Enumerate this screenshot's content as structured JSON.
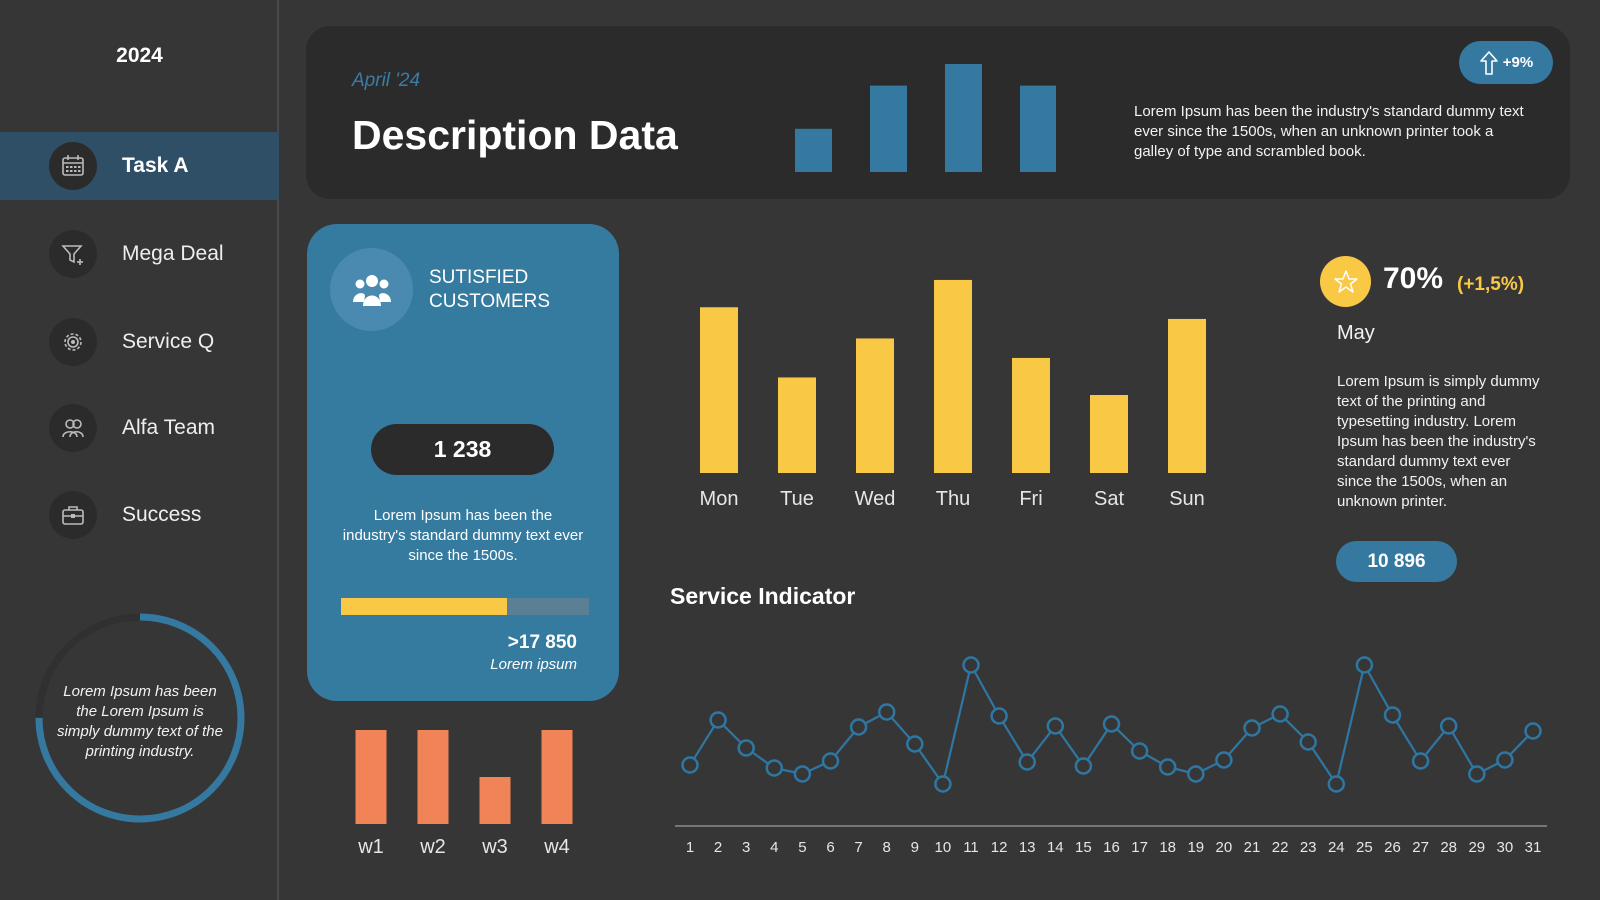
{
  "sidebar": {
    "year": "2024",
    "items": [
      {
        "label": "Task A",
        "icon": "calendar-icon",
        "active": true
      },
      {
        "label": "Mega Deal",
        "icon": "funnel-icon",
        "active": false
      },
      {
        "label": "Service Q",
        "icon": "gear-icon",
        "active": false
      },
      {
        "label": "Alfa Team",
        "icon": "team-icon",
        "active": false
      },
      {
        "label": "Success",
        "icon": "briefcase-icon",
        "active": false
      }
    ],
    "ring_text": "Lorem Ipsum has been the Lorem Ipsum is simply dummy text of the printing industry.",
    "ring_fraction": 0.75
  },
  "header": {
    "date": "April '24",
    "title": "Description Data",
    "description": "Lorem Ipsum has been the industry's standard dummy text ever since the 1500s, when an unknown printer took a galley of type and scrambled book.",
    "badge": "+9%",
    "badge_icon": "arrow-up-icon"
  },
  "customers": {
    "title": "SUTISFIED CUSTOMERS",
    "icon": "people-icon",
    "count": "1 238",
    "description": "Lorem Ipsum has been the industry's standard dummy text ever since the 1500s.",
    "progress": 0.67,
    "total": ">17 850",
    "total_label": "Lorem ipsum"
  },
  "stats": {
    "icon": "star-icon",
    "percent": "70%",
    "change": "(+1,5%)",
    "month": "May",
    "description": "Lorem Ipsum is simply dummy text of the printing and typesetting industry. Lorem Ipsum has been the industry's standard dummy text ever since the 1500s, when an unknown printer.",
    "pill": "10 896"
  },
  "service": {
    "title": "Service Indicator"
  },
  "colors": {
    "blue": "#3579a1",
    "yellow": "#f9c845",
    "orange": "#f08457",
    "line_blue": "#2f77a3"
  },
  "chart_data": [
    {
      "type": "bar",
      "categories": [
        "",
        "",
        "",
        ""
      ],
      "values": [
        40,
        80,
        100,
        80
      ],
      "ylim": [
        0,
        100
      ]
    },
    {
      "type": "bar",
      "categories": [
        "Mon",
        "Tue",
        "Wed",
        "Thu",
        "Fri",
        "Sat",
        "Sun"
      ],
      "values": [
        85,
        49,
        69,
        99,
        59,
        40,
        79
      ],
      "ylim": [
        0,
        100
      ]
    },
    {
      "type": "bar",
      "categories": [
        "w1",
        "w2",
        "w3",
        "w4"
      ],
      "values": [
        100,
        100,
        50,
        100
      ],
      "ylim": [
        0,
        100
      ]
    },
    {
      "type": "line",
      "x": [
        1,
        2,
        3,
        4,
        5,
        6,
        7,
        8,
        9,
        10,
        11,
        12,
        13,
        14,
        15,
        16,
        17,
        18,
        19,
        20,
        21,
        22,
        23,
        24,
        25,
        26,
        27,
        28,
        29,
        30,
        31
      ],
      "values": [
        15,
        60,
        32,
        12,
        6,
        19,
        53,
        68,
        36,
        -4,
        115,
        64,
        18,
        54,
        14,
        56,
        29,
        13,
        6,
        20,
        52,
        66,
        38,
        -4,
        115,
        65,
        19,
        54,
        6,
        20,
        49
      ],
      "ylim": [
        -20,
        130
      ]
    }
  ]
}
